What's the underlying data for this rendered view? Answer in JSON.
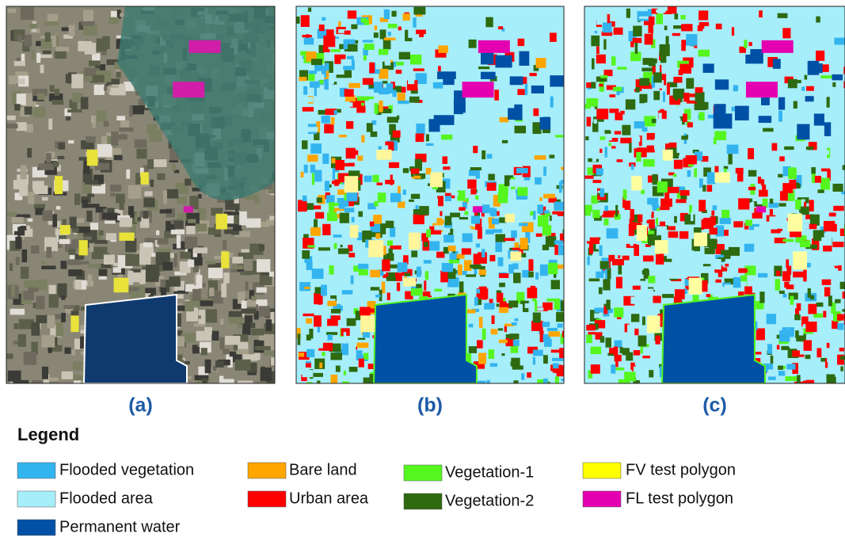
{
  "panels": [
    {
      "label": "(a)"
    },
    {
      "label": "(b)"
    },
    {
      "label": "(c)"
    }
  ],
  "legend": {
    "title": "Legend",
    "items": [
      {
        "label": "Flooded vegetation",
        "color": "#33b4ef"
      },
      {
        "label": "Flooded area",
        "color": "#a6eefa"
      },
      {
        "label": "Permanent water",
        "color": "#0051a6"
      },
      {
        "label": "Bare land",
        "color": "#ffa500"
      },
      {
        "label": "Urban area",
        "color": "#ff0000"
      },
      {
        "label": "Vegetation-1",
        "color": "#55f51e"
      },
      {
        "label": "Vegetation-2",
        "color": "#2e6a0f"
      },
      {
        "label": "FV test polygon",
        "color": "#ffff00"
      },
      {
        "label": "FL test polygon",
        "color": "#e400b0"
      }
    ]
  }
}
